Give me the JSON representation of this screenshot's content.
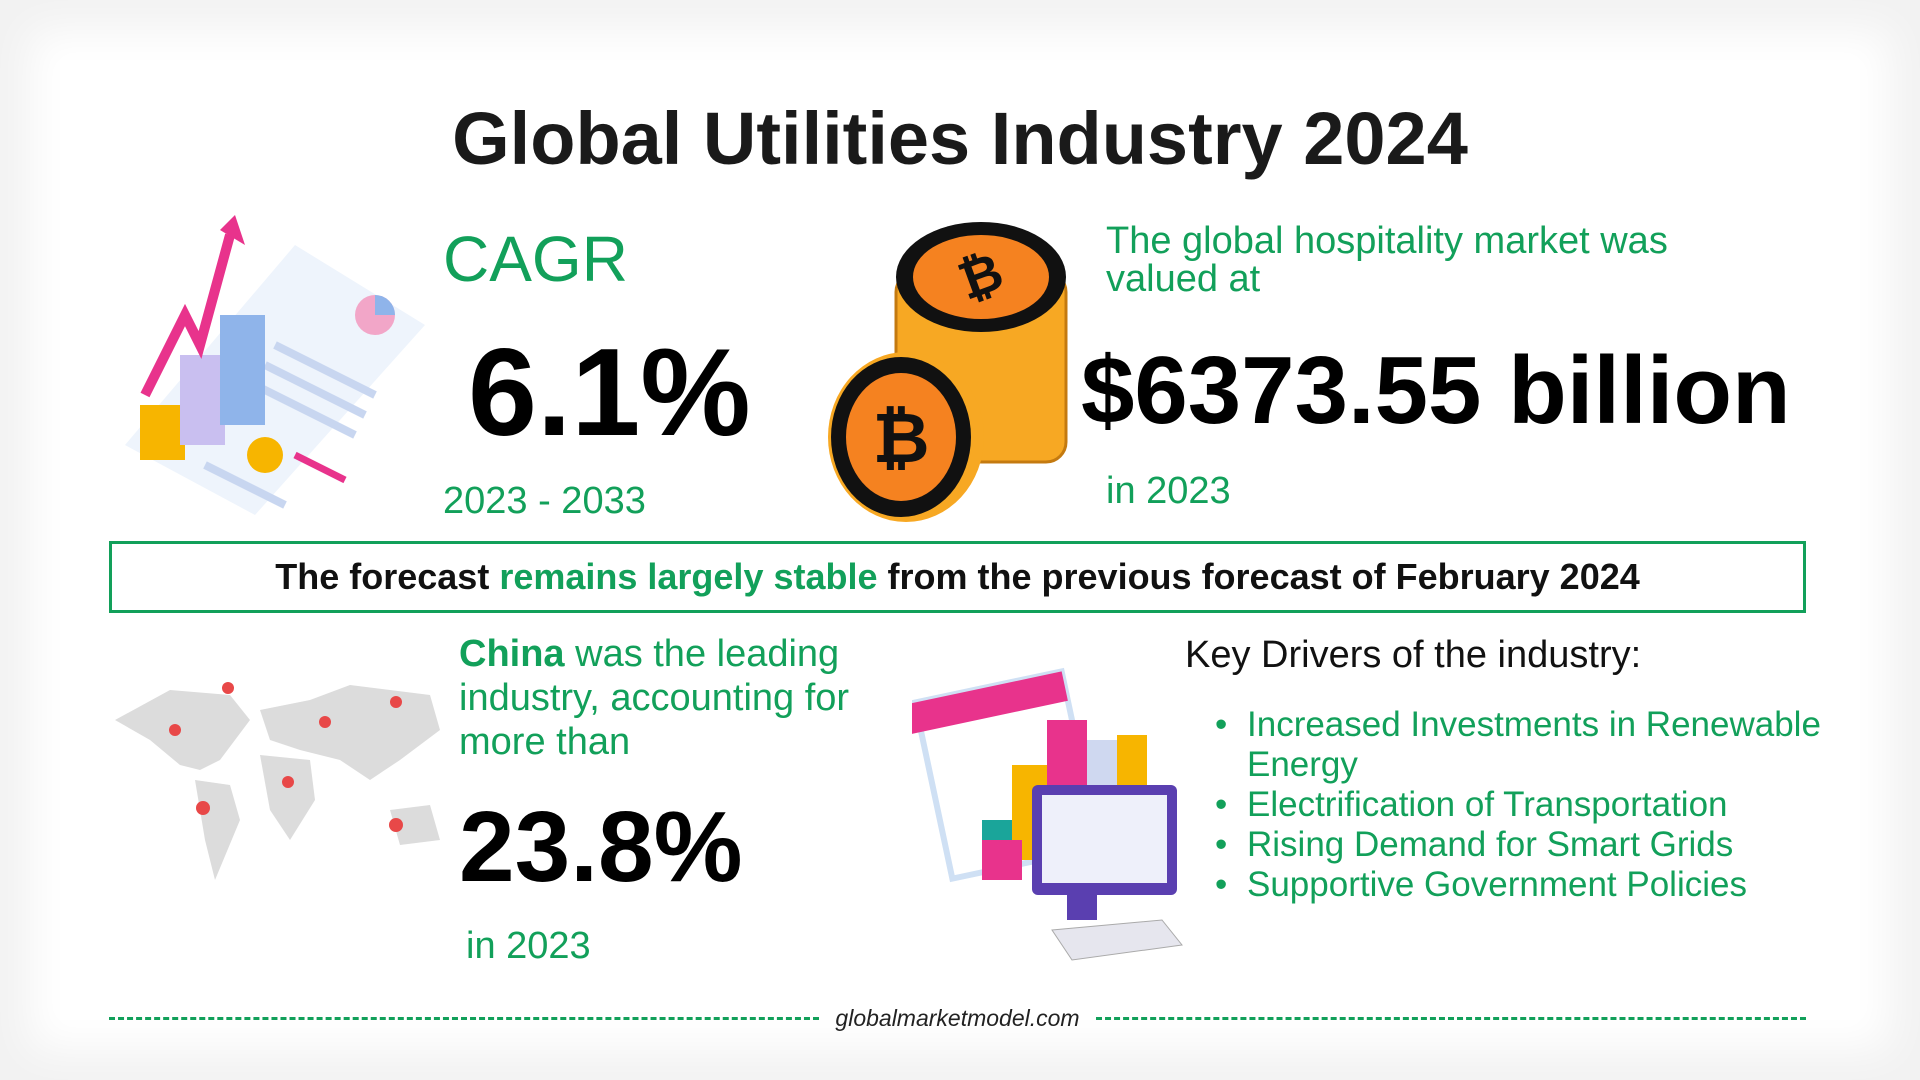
{
  "title": "Global Utilities Industry 2024",
  "cagr": {
    "label": "CAGR",
    "value": "6.1%",
    "period": "2023 - 2033"
  },
  "market": {
    "intro": "The global hospitality market was valued at",
    "value": "$6373.55 billion",
    "year": "in 2023"
  },
  "forecast": {
    "prefix": "The forecast ",
    "highlight": "remains largely stable",
    "suffix": " from the previous forecast of February 2024"
  },
  "region": {
    "name": "China",
    "text": " was the leading industry, accounting for more than",
    "value": "23.8%",
    "year": "in 2023"
  },
  "drivers": {
    "title": "Key Drivers of the industry:",
    "items": [
      "Increased Investments in Renewable Energy",
      "Electrification of Transportation",
      "Rising Demand for Smart Grids",
      "Supportive Government Policies"
    ]
  },
  "footer": {
    "site": "globalmarketmodel.com"
  },
  "colors": {
    "accent": "#12a05a",
    "coin": "#f7a823",
    "pink": "#e8338c"
  }
}
